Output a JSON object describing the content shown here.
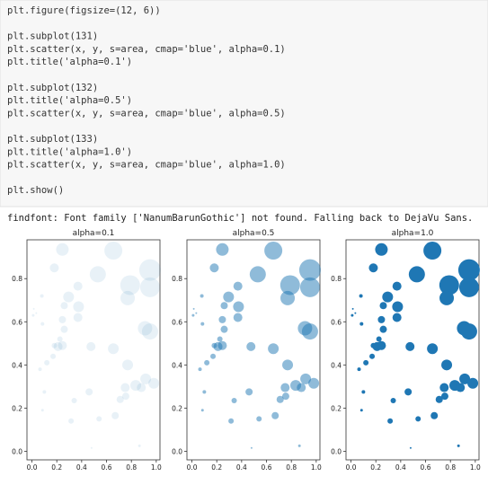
{
  "code": [
    [
      "plt.figure(figsize=(12, 6))"
    ],
    [
      "plt.subplot(131)",
      "plt.scatter(x, y, s=area, cmap='blue', alpha=0.1)",
      "plt.title('alpha=0.1')"
    ],
    [
      "plt.subplot(132)",
      "plt.title('alpha=0.5')",
      "plt.scatter(x, y, s=area, cmap='blue', alpha=0.5)"
    ],
    [
      "plt.subplot(133)",
      "plt.title('alpha=1.0')",
      "plt.scatter(x, y, s=area, cmap='blue', alpha=1.0)"
    ],
    [
      "plt.show()"
    ]
  ],
  "output": "findfont: Font family ['NanumBarunGothic'] not found. Falling back to DejaVu Sans.",
  "chart_data": [
    {
      "type": "scatter",
      "title": "alpha=0.1",
      "alpha": 0.1,
      "xlim": [
        -0.04,
        1.03
      ],
      "ylim": [
        -0.04,
        0.98
      ],
      "xticks": [
        {
          "value": 0,
          "label": "0.0"
        },
        0.2,
        0.4,
        0.6,
        0.8,
        {
          "value": 1,
          "label": "1.0"
        }
      ],
      "yticks": [
        {
          "value": 0,
          "label": "0.0"
        },
        0.2,
        0.4,
        0.6,
        0.8
      ],
      "series": [
        {
          "color": "#1f77b4",
          "x": [
            0.245,
            0.655,
            0.18,
            0.95,
            0.53,
            0.79,
            0.95,
            0.37,
            0.77,
            0.08,
            0.295,
            0.375,
            0.26,
            0.015,
            0.035,
            0.37,
            0.01,
            0.245,
            0.085,
            0.26,
            0.91,
            0.95,
            0.225,
            0.21,
            0.245,
            0.475,
            0.655,
            0.18,
            0.17,
            0.12,
            0.77,
            0.065,
            0.915,
            0.98,
            0.835,
            0.75,
            0.88,
            0.1,
            0.46,
            0.34,
            0.71,
            0.755,
            0.085,
            0.67,
            0.54,
            0.315,
            0.48,
            0.865
          ],
          "values": [
            0.935,
            0.93,
            0.85,
            0.84,
            0.82,
            0.77,
            0.76,
            0.765,
            0.71,
            0.72,
            0.715,
            0.67,
            0.675,
            0.66,
            0.64,
            0.62,
            0.63,
            0.61,
            0.59,
            0.565,
            0.57,
            0.555,
            0.52,
            0.485,
            0.49,
            0.485,
            0.475,
            0.49,
            0.44,
            0.41,
            0.4,
            0.38,
            0.335,
            0.315,
            0.305,
            0.295,
            0.295,
            0.275,
            0.275,
            0.235,
            0.24,
            0.255,
            0.19,
            0.165,
            0.15,
            0.14,
            0.015,
            0.025
          ],
          "sizes": [
            306,
            625,
            156,
            900,
            506,
            756,
            756,
            156,
            400,
            25,
            225,
            225,
            100,
            6,
            6,
            156,
            14,
            100,
            25,
            100,
            400,
            506,
            56,
            156,
            156,
            156,
            225,
            56,
            56,
            56,
            225,
            25,
            225,
            225,
            225,
            156,
            156,
            25,
            100,
            56,
            100,
            100,
            14,
            100,
            56,
            56,
            6,
            14
          ]
        }
      ]
    },
    {
      "type": "scatter",
      "title": "alpha=0.5",
      "alpha": 0.5,
      "xlim": [
        -0.04,
        1.03
      ],
      "ylim": [
        -0.04,
        0.98
      ],
      "xticks": [
        {
          "value": 0,
          "label": "0.0"
        },
        0.2,
        0.4,
        0.6,
        0.8,
        {
          "value": 1,
          "label": "1.0"
        }
      ],
      "yticks": [
        {
          "value": 0,
          "label": "0.0"
        },
        0.2,
        0.4,
        0.6,
        0.8
      ],
      "series": [
        {
          "color": "#1f77b4",
          "x": [
            0.245,
            0.655,
            0.18,
            0.95,
            0.53,
            0.79,
            0.95,
            0.37,
            0.77,
            0.08,
            0.295,
            0.375,
            0.26,
            0.015,
            0.035,
            0.37,
            0.01,
            0.245,
            0.085,
            0.26,
            0.91,
            0.95,
            0.225,
            0.21,
            0.245,
            0.475,
            0.655,
            0.18,
            0.17,
            0.12,
            0.77,
            0.065,
            0.915,
            0.98,
            0.835,
            0.75,
            0.88,
            0.1,
            0.46,
            0.34,
            0.71,
            0.755,
            0.085,
            0.67,
            0.54,
            0.315,
            0.48,
            0.865
          ],
          "values": [
            0.935,
            0.93,
            0.85,
            0.84,
            0.82,
            0.77,
            0.76,
            0.765,
            0.71,
            0.72,
            0.715,
            0.67,
            0.675,
            0.66,
            0.64,
            0.62,
            0.63,
            0.61,
            0.59,
            0.565,
            0.57,
            0.555,
            0.52,
            0.485,
            0.49,
            0.485,
            0.475,
            0.49,
            0.44,
            0.41,
            0.4,
            0.38,
            0.335,
            0.315,
            0.305,
            0.295,
            0.295,
            0.275,
            0.275,
            0.235,
            0.24,
            0.255,
            0.19,
            0.165,
            0.15,
            0.14,
            0.015,
            0.025
          ],
          "sizes": [
            306,
            625,
            156,
            900,
            506,
            756,
            756,
            156,
            400,
            25,
            225,
            225,
            100,
            6,
            6,
            156,
            14,
            100,
            25,
            100,
            400,
            506,
            56,
            156,
            156,
            156,
            225,
            56,
            56,
            56,
            225,
            25,
            225,
            225,
            225,
            156,
            156,
            25,
            100,
            56,
            100,
            100,
            14,
            100,
            56,
            56,
            6,
            14
          ]
        }
      ]
    },
    {
      "type": "scatter",
      "title": "alpha=1.0",
      "alpha": 1.0,
      "xlim": [
        -0.04,
        1.03
      ],
      "ylim": [
        -0.04,
        0.98
      ],
      "xticks": [
        {
          "value": 0,
          "label": "0.0"
        },
        0.2,
        0.4,
        0.6,
        0.8,
        {
          "value": 1,
          "label": "1.0"
        }
      ],
      "yticks": [
        {
          "value": 0,
          "label": "0.0"
        },
        0.2,
        0.4,
        0.6,
        0.8
      ],
      "series": [
        {
          "color": "#1f77b4",
          "x": [
            0.245,
            0.655,
            0.18,
            0.95,
            0.53,
            0.79,
            0.95,
            0.37,
            0.77,
            0.08,
            0.295,
            0.375,
            0.26,
            0.015,
            0.035,
            0.37,
            0.01,
            0.245,
            0.085,
            0.26,
            0.91,
            0.95,
            0.225,
            0.21,
            0.245,
            0.475,
            0.655,
            0.18,
            0.17,
            0.12,
            0.77,
            0.065,
            0.915,
            0.98,
            0.835,
            0.75,
            0.88,
            0.1,
            0.46,
            0.34,
            0.71,
            0.755,
            0.085,
            0.67,
            0.54,
            0.315,
            0.48,
            0.865
          ],
          "values": [
            0.935,
            0.93,
            0.85,
            0.84,
            0.82,
            0.77,
            0.76,
            0.765,
            0.71,
            0.72,
            0.715,
            0.67,
            0.675,
            0.66,
            0.64,
            0.62,
            0.63,
            0.61,
            0.59,
            0.565,
            0.57,
            0.555,
            0.52,
            0.485,
            0.49,
            0.485,
            0.475,
            0.49,
            0.44,
            0.41,
            0.4,
            0.38,
            0.335,
            0.315,
            0.305,
            0.295,
            0.295,
            0.275,
            0.275,
            0.235,
            0.24,
            0.255,
            0.19,
            0.165,
            0.15,
            0.14,
            0.015,
            0.025
          ],
          "sizes": [
            306,
            625,
            156,
            900,
            506,
            756,
            756,
            156,
            400,
            25,
            225,
            225,
            100,
            6,
            6,
            156,
            14,
            100,
            25,
            100,
            400,
            506,
            56,
            156,
            156,
            156,
            225,
            56,
            56,
            56,
            225,
            25,
            225,
            225,
            225,
            156,
            156,
            25,
            100,
            56,
            100,
            100,
            14,
            100,
            56,
            56,
            6,
            14
          ]
        }
      ]
    }
  ]
}
